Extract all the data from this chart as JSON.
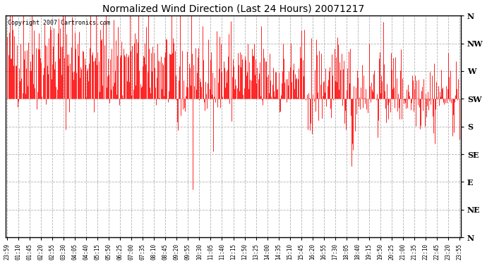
{
  "title": "Normalized Wind Direction (Last 24 Hours) 20071217",
  "copyright_text": "Copyright 2007 Cartronics.com",
  "line_color": "#ff0000",
  "background_color": "#ffffff",
  "plot_bg_color": "#ffffff",
  "grid_color": "#aaaaaa",
  "ytick_labels": [
    "N",
    "NW",
    "W",
    "SW",
    "S",
    "SE",
    "E",
    "NE",
    "N"
  ],
  "ytick_values": [
    1.0,
    0.875,
    0.75,
    0.625,
    0.5,
    0.375,
    0.25,
    0.125,
    0.0
  ],
  "ylim": [
    0.0,
    1.0
  ],
  "xtick_labels": [
    "23:59",
    "01:10",
    "01:45",
    "02:20",
    "02:55",
    "03:30",
    "04:05",
    "04:40",
    "05:15",
    "05:50",
    "06:25",
    "07:00",
    "07:35",
    "08:10",
    "08:45",
    "09:20",
    "09:55",
    "10:30",
    "11:05",
    "11:40",
    "12:15",
    "12:50",
    "13:25",
    "14:00",
    "14:35",
    "15:10",
    "15:45",
    "16:20",
    "16:55",
    "17:30",
    "18:05",
    "18:40",
    "19:15",
    "19:50",
    "20:25",
    "21:00",
    "21:35",
    "22:10",
    "22:45",
    "23:20",
    "23:55"
  ],
  "num_points": 576,
  "seed": 42
}
